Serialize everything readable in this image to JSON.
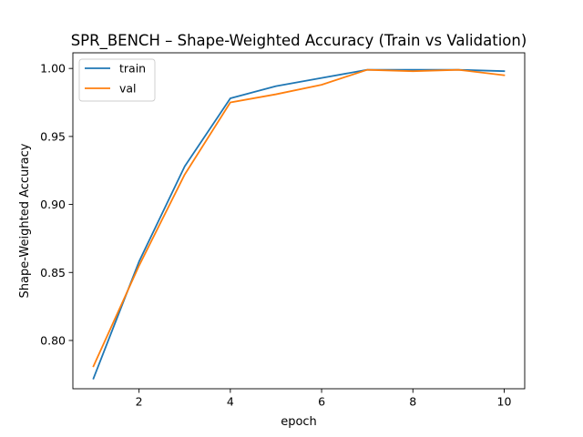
{
  "chart_data": {
    "type": "line",
    "title": "SPR_BENCH – Shape-Weighted Accuracy (Train vs Validation)",
    "xlabel": "epoch",
    "ylabel": "Shape-Weighted Accuracy",
    "x": [
      1,
      2,
      3,
      4,
      5,
      6,
      7,
      8,
      9,
      10
    ],
    "xlim": [
      0.55,
      10.45
    ],
    "ylim": [
      0.7645,
      1.0115
    ],
    "x_ticks": [
      2,
      4,
      6,
      8,
      10
    ],
    "x_tick_labels": [
      "2",
      "4",
      "6",
      "8",
      "10"
    ],
    "y_ticks": [
      0.8,
      0.85,
      0.9,
      0.95,
      1.0
    ],
    "y_tick_labels": [
      "0.80",
      "0.85",
      "0.90",
      "0.95",
      "1.00"
    ],
    "grid": false,
    "legend_position": "top-left",
    "series": [
      {
        "name": "train",
        "color": "#1f77b4",
        "values": [
          0.772,
          0.858,
          0.928,
          0.978,
          0.987,
          0.993,
          0.999,
          0.999,
          0.999,
          0.998
        ]
      },
      {
        "name": "val",
        "color": "#ff7f0e",
        "values": [
          0.781,
          0.855,
          0.922,
          0.975,
          0.981,
          0.988,
          0.999,
          0.998,
          0.999,
          0.995
        ]
      }
    ]
  }
}
